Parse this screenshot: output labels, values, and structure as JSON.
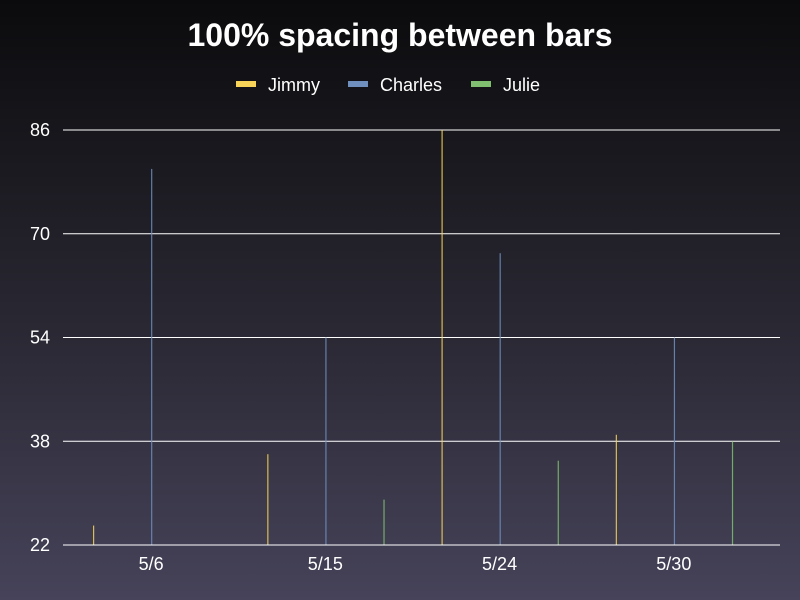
{
  "chart_data": {
    "type": "bar",
    "title": "100% spacing between bars",
    "categories": [
      "5/6",
      "5/15",
      "5/24",
      "5/30"
    ],
    "yticks": [
      22,
      38,
      54,
      70,
      86
    ],
    "ylim": [
      22,
      86
    ],
    "grid": "horizontal",
    "legend_position": "top",
    "series": [
      {
        "name": "Jimmy",
        "color": "#f7d358",
        "values": [
          25,
          36,
          86,
          39
        ]
      },
      {
        "name": "Charles",
        "color": "#6f8fbf",
        "values": [
          80,
          54,
          67,
          54
        ]
      },
      {
        "name": "Julie",
        "color": "#7fbf6f",
        "values": [
          22,
          29,
          35,
          38
        ]
      }
    ]
  }
}
